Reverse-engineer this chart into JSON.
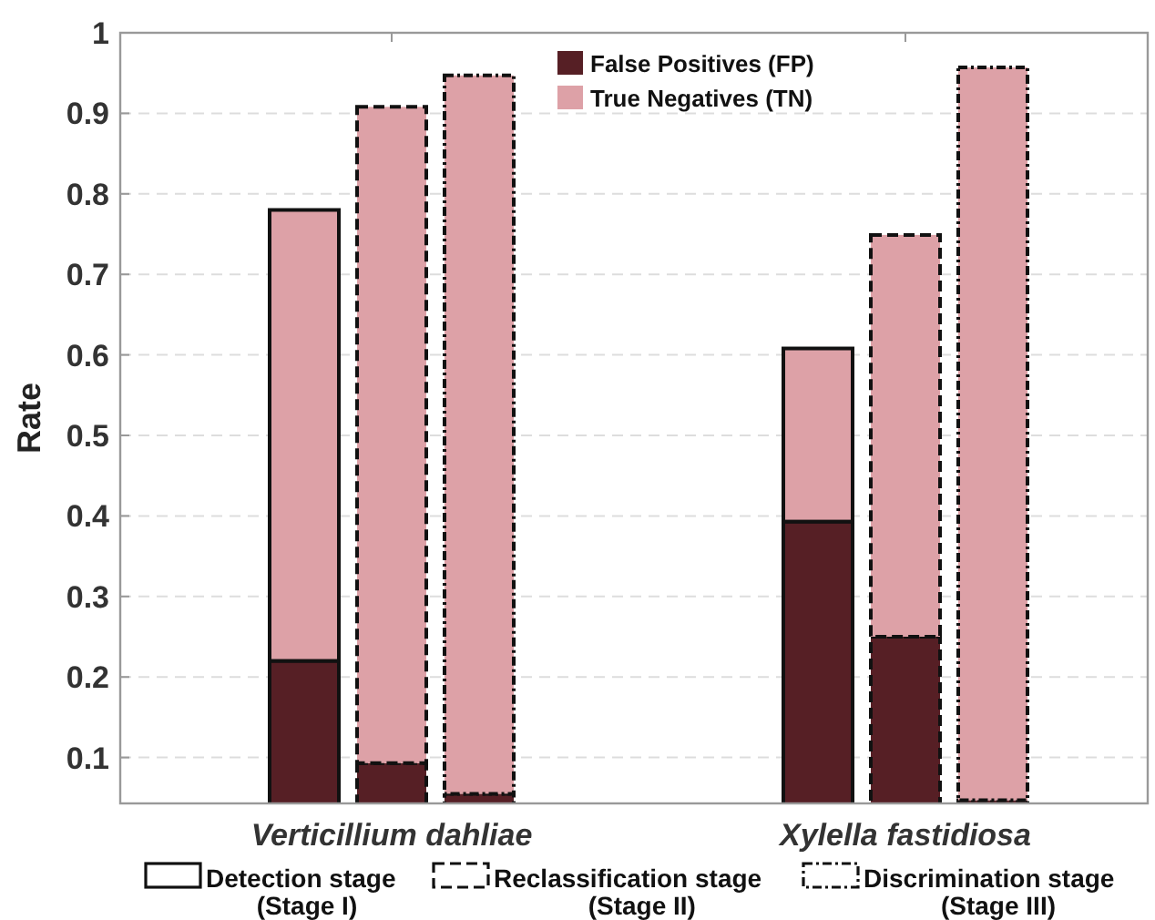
{
  "chart_data": {
    "type": "bar",
    "stacked": true,
    "ylabel": "Rate",
    "categories": [
      null,
      "Verticillium dahliae",
      null,
      null,
      "Xylella fastidiosa",
      null
    ],
    "series": [
      {
        "name": "False Positives (FP)",
        "color": "#561f25",
        "values": [
          0.22,
          0.093,
          0.055,
          0.393,
          0.25,
          0.047
        ]
      },
      {
        "name": "True Negatives (TN)",
        "color": "#dda1a7",
        "values": [
          0.56,
          0.815,
          0.892,
          0.215,
          0.499,
          0.91
        ]
      }
    ],
    "ylim": [
      0.043,
      1
    ],
    "yticks": [
      0.1,
      0.2,
      0.3,
      0.4,
      0.5,
      0.6,
      0.7,
      0.8,
      0.9,
      1
    ],
    "grid": "y",
    "legend": "top",
    "line_style": [
      "solid",
      "dashed",
      "dotted",
      "solid",
      "dashed",
      "dotted"
    ],
    "annotations": [
      "Detection stage\n(Stage I)",
      "Reclassification stage\n(Stage II)",
      "Discrimination stage\n(Stage III)"
    ]
  }
}
